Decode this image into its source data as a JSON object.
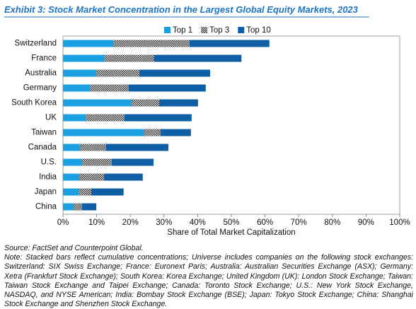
{
  "chart_data": {
    "type": "bar",
    "orientation": "horizontal",
    "title": "Exhibit 3: Stock Market Concentration in the Largest Global Equity Markets, 2023",
    "x_label": "Share of Total Market Capitalization",
    "categories": [
      "Switzerland",
      "France",
      "Australia",
      "Germany",
      "South Korea",
      "UK",
      "Taiwan",
      "Canada",
      "U.S.",
      "India",
      "Japan",
      "China"
    ],
    "series": [
      {
        "name": "Top 1",
        "color": "#1ba1e2",
        "values": [
          15,
          12.2,
          9.9,
          8,
          20.4,
          6.7,
          24,
          5,
          5.7,
          4.8,
          4.6,
          3.2
        ]
      },
      {
        "name": "Top 3",
        "color": "#1a1a1a",
        "values": [
          37.6,
          27,
          22.7,
          19.5,
          28.6,
          18.3,
          29,
          12.8,
          14.5,
          12.2,
          8.4,
          5.7
        ]
      },
      {
        "name": "Top 10",
        "color": "#0f5fa6",
        "values": [
          61.3,
          53,
          43.7,
          42.4,
          40.1,
          38.2,
          38,
          31.3,
          26.9,
          23.7,
          18,
          9.9
        ]
      }
    ],
    "xlim": [
      0,
      100
    ],
    "xticks": [
      {
        "value": 0,
        "label": "0%"
      },
      {
        "value": 10,
        "label": "10%"
      },
      {
        "value": 20,
        "label": "20%"
      },
      {
        "value": 30,
        "label": "30%"
      },
      {
        "value": 40,
        "label": "40%"
      },
      {
        "value": 50,
        "label": "50%"
      },
      {
        "value": 60,
        "label": "60%"
      },
      {
        "value": 70,
        "label": "70%"
      },
      {
        "value": 80,
        "label": "80%"
      },
      {
        "value": 90,
        "label": "90%"
      },
      {
        "value": 100,
        "label": "100%"
      }
    ],
    "legend": "top",
    "source": "Source: FactSet and Counterpoint Global.",
    "note": "Note: Stacked bars reflect cumulative concentrations; Universe includes companies on the following stock exchanges: Switzerland: SIX Swiss Exchange; France: Euronext Paris; Australia: Australian Securities Exchange (ASX); Germany: Xetra (Frankfurt Stock Exchange); South Korea: Korea Exchange; United Kingdom (UK): London Stock Exchange; Taiwan: Taiwan Stock Exchange and Taipei Exchange; Canada: Toronto Stock Exchange; U.S.: New York Stock Exchange, NASDAQ, and NYSE American; India: Bombay Stock Exchange (BSE); Japan: Tokyo Stock Exchange; China: Shanghai Stock Exchange and Shenzhen Stock Exchange."
  }
}
